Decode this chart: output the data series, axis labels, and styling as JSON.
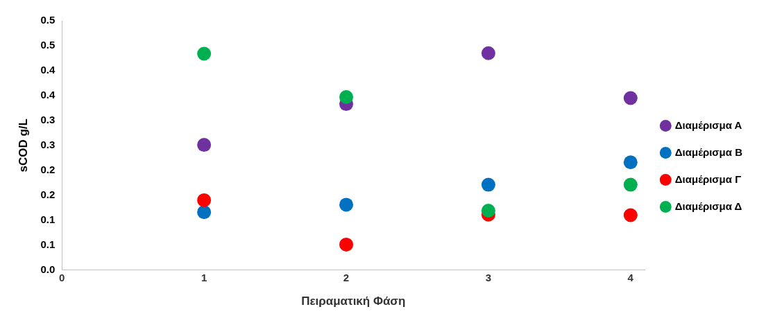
{
  "chart_data": {
    "type": "scatter",
    "xlabel": "Πειραματική Φάση",
    "ylabel": "sCOD g/L",
    "x": [
      1,
      2,
      3,
      4
    ],
    "series": [
      {
        "name": "Διαμέρισμα Α",
        "color": "#7030a0",
        "values": [
          0.251,
          0.333,
          0.435,
          0.345
        ]
      },
      {
        "name": "Διαμέρισμα Β",
        "color": "#0070c0",
        "values": [
          0.116,
          0.131,
          0.171,
          0.216
        ]
      },
      {
        "name": "Διαμέρισμα Γ",
        "color": "#ff0000",
        "values": [
          0.14,
          0.051,
          0.111,
          0.11
        ]
      },
      {
        "name": "Διαμέρισμα Δ",
        "color": "#00b050",
        "values": [
          0.434,
          0.347,
          0.119,
          0.171
        ]
      }
    ],
    "xlim": [
      0,
      4.1
    ],
    "xticks": [
      0,
      1,
      2,
      3,
      4
    ],
    "ylim": [
      0,
      0.5
    ],
    "yticks": [
      {
        "value": 0,
        "label": "0.0"
      },
      {
        "value": 0.05,
        "label": "0.1"
      },
      {
        "value": 0.1,
        "label": "0.1"
      },
      {
        "value": 0.15,
        "label": "0.2"
      },
      {
        "value": 0.2,
        "label": "0.2"
      },
      {
        "value": 0.25,
        "label": "0.3"
      },
      {
        "value": 0.3,
        "label": "0.3"
      },
      {
        "value": 0.35,
        "label": "0.4"
      },
      {
        "value": 0.4,
        "label": "0.4"
      },
      {
        "value": 0.45,
        "label": "0.5"
      },
      {
        "value": 0.5,
        "label": "0.5"
      }
    ],
    "legend": "right",
    "marker": "circle",
    "grid": false
  }
}
